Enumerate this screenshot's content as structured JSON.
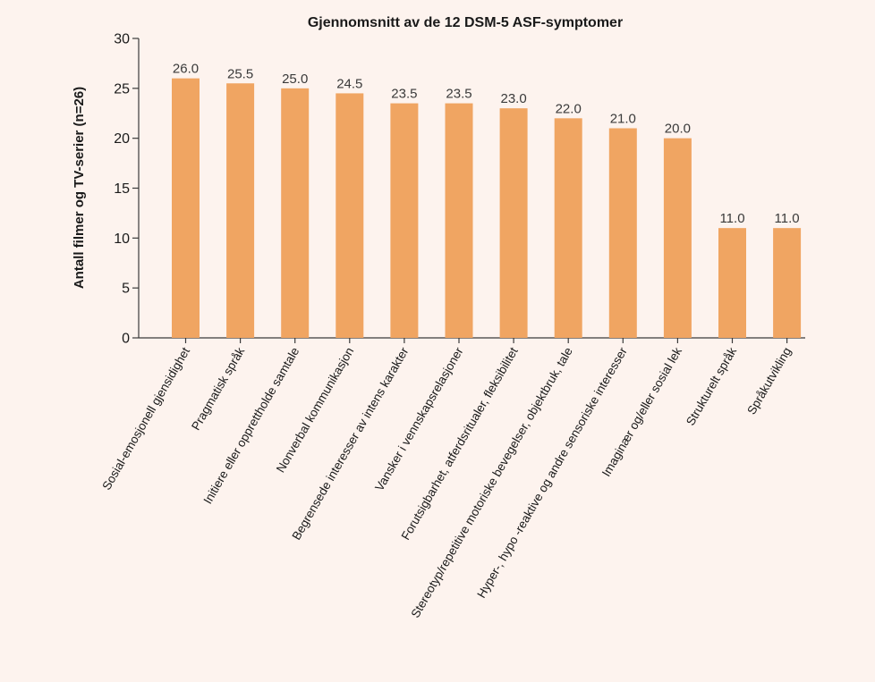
{
  "chart_data": {
    "type": "bar",
    "title": "Gjennomsnitt av de 12 DSM-5 ASF-symptomer",
    "xlabel": "",
    "ylabel": "Antall filmer og TV-serier (n=26)",
    "ylim": [
      0,
      30
    ],
    "yticks": [
      0,
      5,
      10,
      15,
      20,
      25,
      30
    ],
    "grid": false,
    "legend": "none",
    "bar_color": "#f0a562",
    "categories": [
      "Sosial-emosjonell gjensidighet",
      "Pragmatisk språk",
      "Initiere eller opprettholde samtale",
      "Nonverbal kommunikasjon",
      "Begrensede interesser av intens karakter",
      "Vansker i vennskapsrelasjoner",
      "Forutsigbarhet, atferdsritualer, fleksibilitet",
      "Stereotyp/repetitive motoriske bevegelser, objektbruk, tale",
      "Hyper-, hypo -reaktive og andre sensoriske interesser",
      "Imaginær og/eller sosial lek",
      "Strukturelt språk",
      "Språkutvikling"
    ],
    "values": [
      26.0,
      25.5,
      25.0,
      24.5,
      23.5,
      23.5,
      23.0,
      22.0,
      21.0,
      20.0,
      11.0,
      11.0
    ],
    "value_labels": [
      "26.0",
      "25.5",
      "25.0",
      "24.5",
      "23.5",
      "23.5",
      "23.0",
      "22.0",
      "21.0",
      "20.0",
      "11.0",
      "11.0"
    ]
  }
}
